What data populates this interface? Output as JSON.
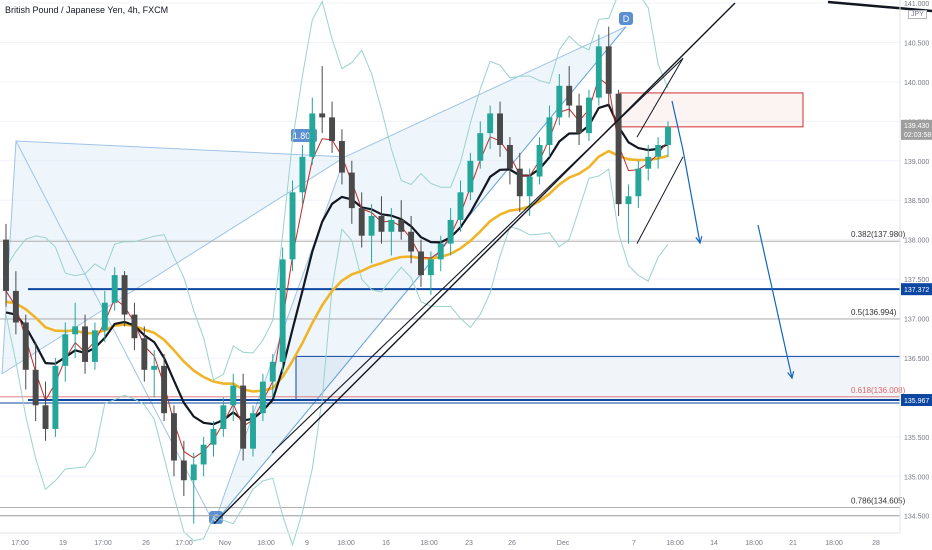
{
  "header": {
    "symbol": "British Pound / Japanese Yen, 4h, FXCM",
    "currency": "JPY"
  },
  "colors": {
    "bull": "#26a69a",
    "bear": "#4a4a4a",
    "ema_slow": "#f0b429",
    "ema_mid": "#131722",
    "ema_fast": "#c62828",
    "bands": "#9ad3cc",
    "zone_blue": "#0d47a1",
    "zone_red": "#d32f2f",
    "pattern_fill": "#dbeaf6"
  },
  "chart_data": {
    "type": "candlestick",
    "title": "British Pound / Japanese Yen, 4h, FXCM",
    "ylim": [
      134.3,
      141.0
    ],
    "y_ticks": [
      "134.500",
      "135.000",
      "135.500",
      "136.000",
      "136.500",
      "137.000",
      "137.500",
      "138.000",
      "138.500",
      "139.000",
      "139.500",
      "140.000",
      "140.500",
      "141.000"
    ],
    "x_ticks": [
      "17:00",
      "19",
      "17:00",
      "26",
      "17:00",
      "Nov",
      "18:00",
      "9",
      "18:00",
      "16",
      "18:00",
      "23",
      "26",
      "Dec",
      "7",
      "18:00",
      "14",
      "18:00",
      "21",
      "18:00",
      "28"
    ],
    "current_price": "139.430",
    "countdown": "02:03:58",
    "price_labels": [
      {
        "value": 137.372,
        "label": "137.372"
      },
      {
        "value": 135.967,
        "label": "135.967"
      }
    ],
    "fibonacci": [
      {
        "level": "0.382",
        "price": 137.98,
        "label": "0.382(137.980)"
      },
      {
        "level": "0.5",
        "price": 136.994,
        "label": "0.5(136.994)"
      },
      {
        "level": "0.618",
        "price": 136.008,
        "label": "0.618(136.008)"
      },
      {
        "level": "0.786",
        "price": 134.605,
        "label": "0.786(134.605)"
      }
    ],
    "pattern": {
      "ratio_label": "1.806",
      "point_c": "C",
      "point_c_price": 134.4,
      "point_d": "D",
      "point_d_price": 140.7
    },
    "zones": [
      {
        "name": "supply",
        "top": 139.86,
        "bottom": 139.43,
        "color": "#d32f2f"
      },
      {
        "name": "demand",
        "top": 136.52,
        "bottom": 135.967,
        "color": "#0d47a1"
      }
    ],
    "ohlc_series": [
      [
        138.0,
        138.2,
        137.15,
        137.35
      ],
      [
        137.35,
        137.6,
        136.8,
        136.95
      ],
      [
        136.95,
        137.05,
        136.1,
        136.35
      ],
      [
        136.35,
        136.7,
        135.7,
        135.9
      ],
      [
        135.9,
        136.2,
        135.45,
        135.6
      ],
      [
        135.6,
        136.5,
        135.5,
        136.4
      ],
      [
        136.4,
        136.95,
        136.2,
        136.8
      ],
      [
        136.8,
        137.2,
        136.5,
        136.9
      ],
      [
        136.9,
        137.05,
        136.3,
        136.45
      ],
      [
        136.45,
        136.95,
        136.35,
        136.85
      ],
      [
        136.85,
        137.35,
        136.7,
        137.2
      ],
      [
        137.2,
        137.65,
        137.1,
        137.55
      ],
      [
        137.55,
        137.6,
        136.9,
        137.05
      ],
      [
        137.05,
        137.2,
        136.6,
        136.75
      ],
      [
        136.75,
        136.9,
        136.2,
        136.35
      ],
      [
        136.35,
        136.6,
        136.0,
        136.4
      ],
      [
        136.4,
        136.55,
        135.7,
        135.8
      ],
      [
        135.8,
        135.9,
        135.0,
        135.2
      ],
      [
        135.2,
        135.45,
        134.75,
        134.95
      ],
      [
        134.95,
        135.3,
        134.4,
        135.15
      ],
      [
        135.15,
        135.5,
        135.0,
        135.4
      ],
      [
        135.4,
        135.7,
        135.25,
        135.6
      ],
      [
        135.6,
        136.0,
        135.5,
        135.9
      ],
      [
        135.9,
        136.3,
        135.7,
        136.15
      ],
      [
        136.15,
        136.3,
        135.2,
        135.35
      ],
      [
        135.35,
        135.9,
        135.25,
        135.8
      ],
      [
        135.8,
        136.3,
        135.7,
        136.2
      ],
      [
        136.2,
        136.55,
        136.0,
        136.45
      ],
      [
        136.45,
        137.9,
        136.3,
        137.75
      ],
      [
        137.75,
        138.75,
        137.6,
        138.6
      ],
      [
        138.6,
        139.2,
        138.45,
        139.05
      ],
      [
        139.05,
        139.8,
        138.95,
        139.6
      ],
      [
        139.6,
        140.2,
        139.35,
        139.55
      ],
      [
        139.55,
        139.75,
        139.1,
        139.25
      ],
      [
        139.25,
        139.4,
        138.7,
        138.85
      ],
      [
        138.85,
        139.0,
        138.2,
        138.4
      ],
      [
        138.4,
        138.6,
        137.9,
        138.05
      ],
      [
        138.05,
        138.45,
        137.7,
        138.3
      ],
      [
        138.3,
        138.55,
        137.95,
        138.1
      ],
      [
        138.1,
        138.4,
        137.8,
        138.25
      ],
      [
        138.25,
        138.5,
        138.0,
        138.1
      ],
      [
        138.1,
        138.3,
        137.7,
        137.85
      ],
      [
        137.85,
        138.0,
        137.4,
        137.55
      ],
      [
        137.55,
        137.85,
        137.3,
        137.75
      ],
      [
        137.75,
        138.05,
        137.6,
        137.95
      ],
      [
        137.95,
        138.4,
        137.8,
        138.25
      ],
      [
        138.25,
        138.75,
        138.1,
        138.6
      ],
      [
        138.6,
        139.1,
        138.5,
        139.0
      ],
      [
        139.0,
        139.5,
        138.9,
        139.35
      ],
      [
        139.35,
        139.7,
        139.15,
        139.6
      ],
      [
        139.6,
        139.75,
        139.05,
        139.2
      ],
      [
        139.2,
        139.3,
        138.7,
        138.9
      ],
      [
        138.9,
        139.1,
        138.35,
        138.55
      ],
      [
        138.55,
        138.9,
        138.3,
        138.8
      ],
      [
        138.8,
        139.3,
        138.7,
        139.2
      ],
      [
        139.2,
        139.7,
        139.05,
        139.55
      ],
      [
        139.55,
        140.1,
        139.45,
        139.95
      ],
      [
        139.95,
        140.2,
        139.55,
        139.7
      ],
      [
        139.7,
        139.85,
        139.2,
        139.35
      ],
      [
        139.35,
        139.9,
        139.25,
        139.8
      ],
      [
        139.8,
        140.6,
        139.7,
        140.45
      ],
      [
        140.45,
        140.7,
        139.7,
        139.85
      ],
      [
        139.85,
        139.9,
        138.3,
        138.45
      ],
      [
        138.45,
        138.7,
        137.95,
        138.55
      ],
      [
        138.55,
        139.0,
        138.4,
        138.9
      ],
      [
        138.9,
        139.2,
        138.75,
        139.05
      ],
      [
        139.05,
        139.3,
        138.9,
        139.2
      ],
      [
        139.2,
        139.5,
        139.05,
        139.43
      ]
    ]
  }
}
